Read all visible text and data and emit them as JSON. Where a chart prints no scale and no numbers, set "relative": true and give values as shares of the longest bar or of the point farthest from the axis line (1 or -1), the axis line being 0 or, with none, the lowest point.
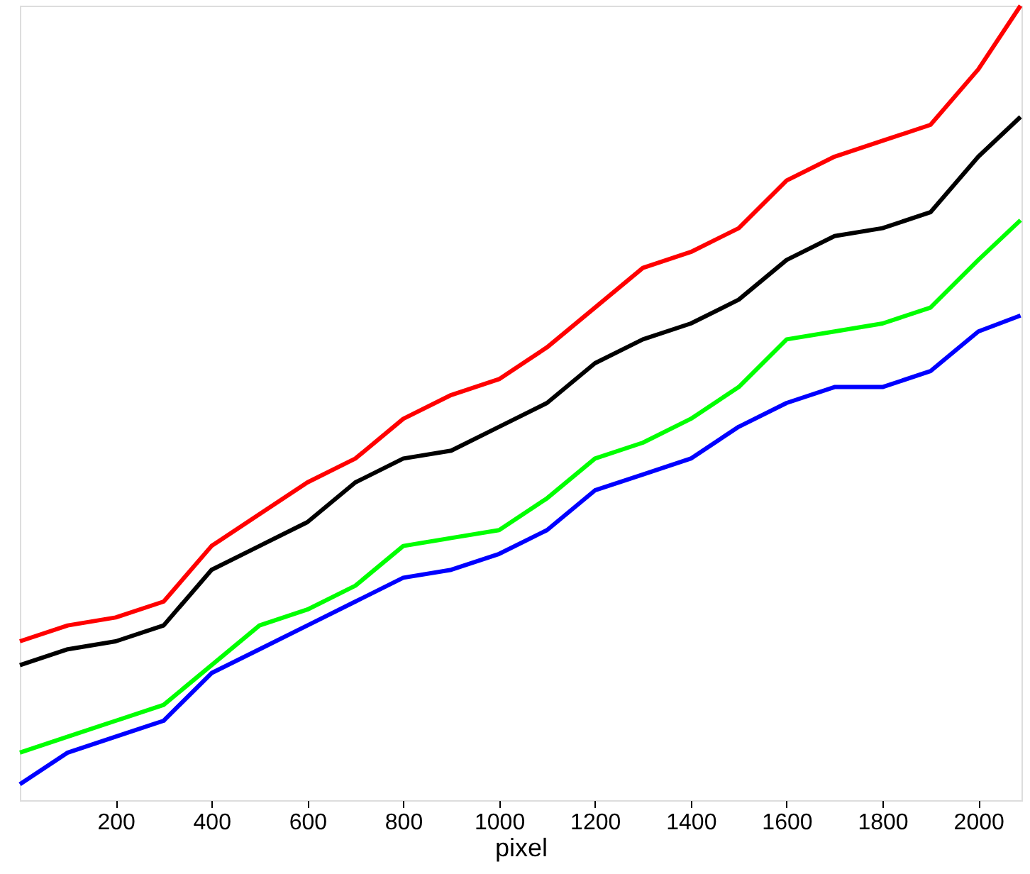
{
  "chart_data": {
    "type": "line",
    "xlabel": "pixel",
    "relative": true,
    "grid": false,
    "line_style": "solid",
    "marker": "none",
    "x": [
      0,
      100,
      200,
      300,
      400,
      500,
      600,
      700,
      800,
      900,
      1000,
      1100,
      1200,
      1300,
      1400,
      1500,
      1600,
      1700,
      1800,
      1900,
      2000,
      2088
    ],
    "xlim": [
      0,
      2090
    ],
    "xticks": [
      200,
      400,
      600,
      800,
      1000,
      1200,
      1400,
      1600,
      1800,
      2000
    ],
    "series": [
      {
        "color": "#ff0000",
        "values": [
          0.2,
          0.22,
          0.23,
          0.25,
          0.32,
          0.36,
          0.4,
          0.43,
          0.48,
          0.51,
          0.53,
          0.57,
          0.62,
          0.67,
          0.69,
          0.72,
          0.78,
          0.81,
          0.83,
          0.85,
          0.92,
          1.0
        ]
      },
      {
        "color": "#000000",
        "values": [
          0.17,
          0.19,
          0.2,
          0.22,
          0.29,
          0.32,
          0.35,
          0.4,
          0.43,
          0.44,
          0.47,
          0.5,
          0.55,
          0.58,
          0.6,
          0.63,
          0.68,
          0.71,
          0.72,
          0.74,
          0.81,
          0.86
        ]
      },
      {
        "color": "#00ff00",
        "values": [
          0.06,
          0.08,
          0.1,
          0.12,
          0.17,
          0.22,
          0.24,
          0.27,
          0.32,
          0.33,
          0.34,
          0.38,
          0.43,
          0.45,
          0.48,
          0.52,
          0.58,
          0.59,
          0.6,
          0.62,
          0.68,
          0.73
        ]
      },
      {
        "color": "#0000ff",
        "values": [
          0.02,
          0.06,
          0.08,
          0.1,
          0.16,
          0.19,
          0.22,
          0.25,
          0.28,
          0.29,
          0.31,
          0.34,
          0.39,
          0.41,
          0.43,
          0.47,
          0.5,
          0.52,
          0.52,
          0.54,
          0.59,
          0.61
        ]
      }
    ]
  }
}
